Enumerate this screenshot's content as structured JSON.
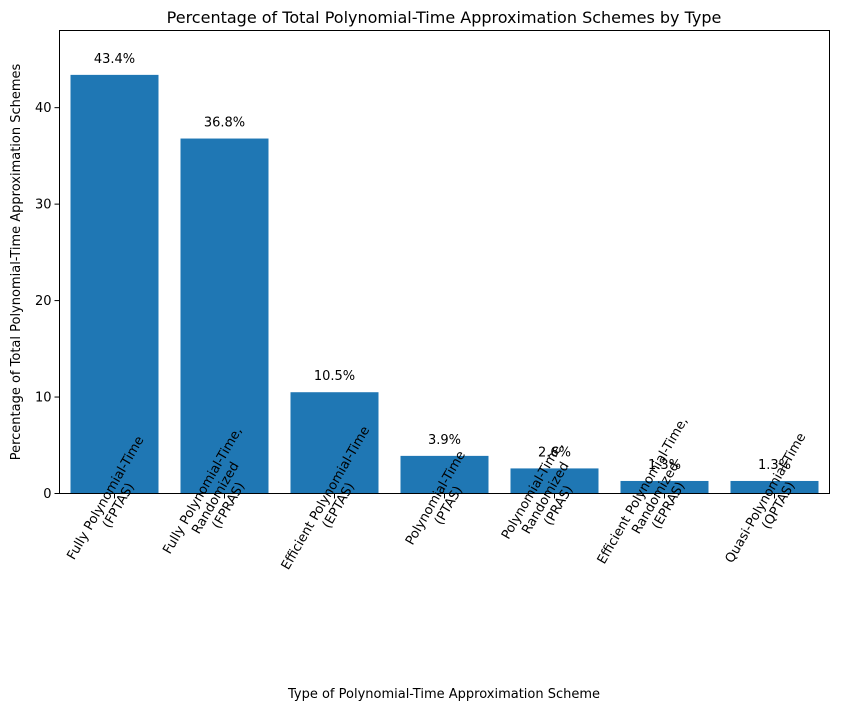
{
  "chart_data": {
    "type": "bar",
    "title": "Percentage of Total Polynomial-Time Approximation Schemes by Type",
    "xlabel": "Type of Polynomial-Time Approximation Scheme",
    "ylabel": "Percentage of Total Polynomial-Time Approximation Schemes",
    "ylim": [
      0,
      48
    ],
    "yticks": [
      0,
      10,
      20,
      30,
      40
    ],
    "bar_color": "#1f77b4",
    "categories": [
      "Fully Polynomial-Time\n(FPTAS)",
      "Fully Polynomial-Time,\nRandomized\n(FPRAS)",
      "Efficient Polynomial-Time\n(EPTAS)",
      "Polynomial-Time\n(PTAS)",
      "Polynomial-Time,\nRandomized\n(PRAS)",
      "Efficient Polynomial-Time,\nRandomized\n(EPRAS)",
      "Quasi-Polynomial-Time\n(QPTAS)"
    ],
    "values": [
      43.4,
      36.8,
      10.5,
      3.9,
      2.6,
      1.3,
      1.3
    ],
    "data_labels": [
      "43.4%",
      "36.8%",
      "10.5%",
      "3.9%",
      "2.6%",
      "1.3%",
      "1.3%"
    ],
    "grid": false,
    "legend": "none"
  }
}
